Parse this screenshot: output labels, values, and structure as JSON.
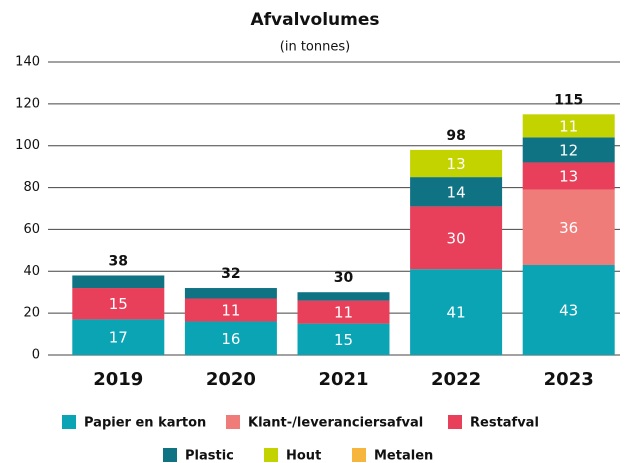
{
  "chart_data": {
    "type": "stacked_bar",
    "title": "Afvalvolumes",
    "subtitle": "(in tonnes)",
    "categories": [
      "2019",
      "2020",
      "2021",
      "2022",
      "2023"
    ],
    "series": [
      {
        "name": "Papier en karton",
        "color": "#0aa4b5",
        "values": [
          17,
          16,
          15,
          41,
          43
        ]
      },
      {
        "name": "Klant-/leveranciersafval",
        "color": "#f07c7a",
        "values": [
          0,
          0,
          0,
          0,
          36
        ]
      },
      {
        "name": "Restafval",
        "color": "#e8405a",
        "values": [
          15,
          11,
          11,
          30,
          13
        ]
      },
      {
        "name": "Plastic",
        "color": "#0f7384",
        "values": [
          6,
          5,
          4,
          14,
          12
        ]
      },
      {
        "name": "Hout",
        "color": "#c3d300",
        "values": [
          0,
          0,
          0,
          13,
          11
        ]
      },
      {
        "name": "Metalen",
        "color": "#f6b53c",
        "values": [
          0,
          0,
          0,
          0,
          0
        ]
      }
    ],
    "totals": [
      38,
      32,
      30,
      98,
      115
    ],
    "ylim": [
      0,
      140
    ],
    "yticks": [
      0,
      20,
      40,
      60,
      80,
      100,
      120,
      140
    ],
    "grid": true
  }
}
